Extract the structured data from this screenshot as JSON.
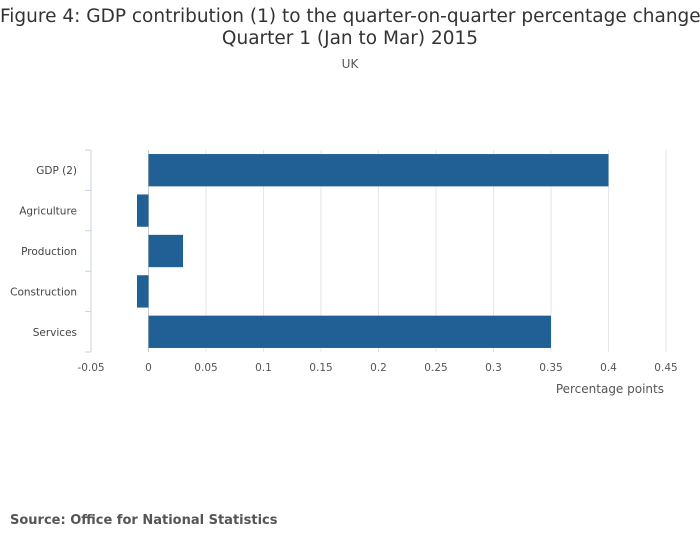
{
  "chart_data": {
    "type": "bar",
    "orientation": "horizontal",
    "title_lines": [
      "Figure 4: GDP contribution (1) to the quarter-on-quarter percentage change,",
      "Quarter 1 (Jan to Mar) 2015"
    ],
    "subtitle": "UK",
    "categories": [
      "GDP (2)",
      "Agriculture",
      "Production",
      "Construction",
      "Services"
    ],
    "values": [
      0.4,
      -0.01,
      0.03,
      -0.01,
      0.35
    ],
    "xlabel": "Percentage points",
    "ylabel": "",
    "xlim": [
      -0.05,
      0.45
    ],
    "x_ticks": [
      "-0.05",
      "0",
      "0.05",
      "0.1",
      "0.15",
      "0.2",
      "0.25",
      "0.3",
      "0.35",
      "0.4",
      "0.45"
    ],
    "grid": true,
    "bar_color": "#206095"
  },
  "footer": {
    "source": "Source: Office for National Statistics"
  }
}
